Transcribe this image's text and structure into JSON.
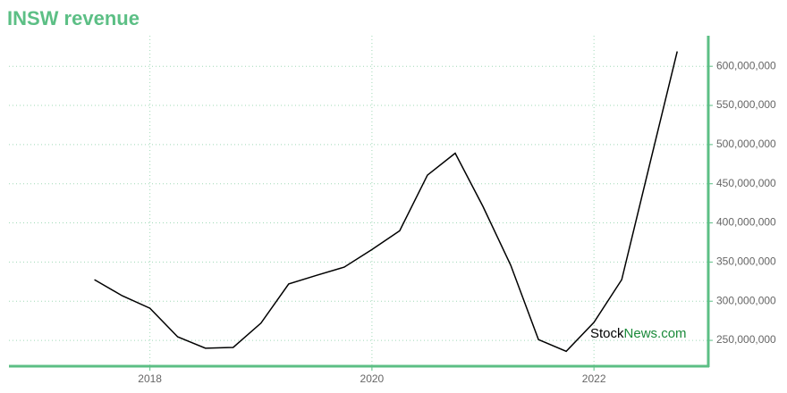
{
  "chart_data": {
    "type": "line",
    "title": "INSW revenue",
    "x": [
      2017.5,
      2017.75,
      2018,
      2018.25,
      2018.5,
      2018.75,
      2019,
      2019.25,
      2019.5,
      2019.75,
      2020,
      2020.25,
      2020.5,
      2020.75,
      2021,
      2021.25,
      2021.5,
      2021.75,
      2022,
      2022.25,
      2022.5,
      2022.75
    ],
    "series": [
      {
        "name": "INSW revenue",
        "color": "#000000",
        "values": [
          327500000,
          307000000,
          291000000,
          254500000,
          240000000,
          241000000,
          272000000,
          322000000,
          333000000,
          343500000,
          366000000,
          390000000,
          461000000,
          489000000,
          421000000,
          346000000,
          251000000,
          236000000,
          273000000,
          327500000,
          473500000,
          619000000
        ]
      }
    ],
    "xlim": [
      2016.73,
      2023.03
    ],
    "xticks": [
      2018,
      2020,
      2022
    ],
    "ylim": [
      217000000,
      639000000
    ],
    "yticks": [
      {
        "value": 250000000,
        "label": "250,000,000"
      },
      {
        "value": 300000000,
        "label": "300,000,000"
      },
      {
        "value": 350000000,
        "label": "350,000,000"
      },
      {
        "value": 400000000,
        "label": "400,000,000"
      },
      {
        "value": 450000000,
        "label": "450,000,000"
      },
      {
        "value": 500000000,
        "label": "500,000,000"
      },
      {
        "value": 550000000,
        "label": "550,000,000"
      },
      {
        "value": 600000000,
        "label": "600,000,000"
      }
    ],
    "grid": true,
    "axis_color": "#5cbf85",
    "watermark": {
      "part1": "Stock",
      "part2": "News.com"
    }
  }
}
